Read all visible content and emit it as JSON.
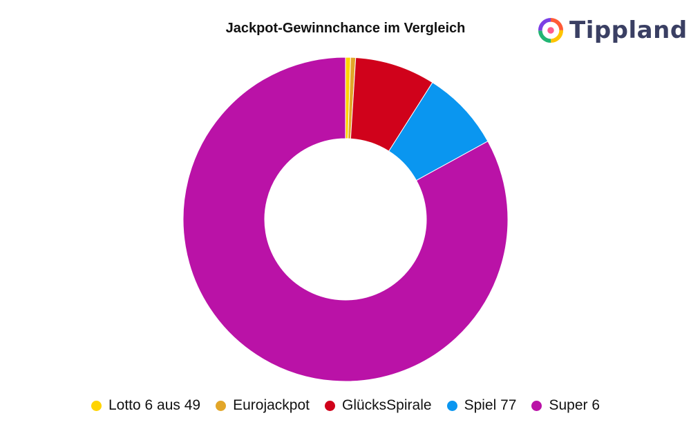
{
  "brand": {
    "name": "Tippland",
    "logo_icon": "tippland-logo-icon"
  },
  "chart_data": {
    "type": "pie",
    "variant": "donut",
    "title": "Jackpot-Gewinnchance im Vergleich",
    "legend_position": "bottom",
    "categories": [
      "Lotto 6 aus 49",
      "Eurojackpot",
      "GlücksSpirale",
      "Spiel 77",
      "Super 6"
    ],
    "values": [
      0.5,
      0.5,
      8.0,
      8.0,
      83.0
    ],
    "colors": [
      "#ffd400",
      "#e2a629",
      "#d0021b",
      "#0a96f0",
      "#ba12a7"
    ]
  }
}
